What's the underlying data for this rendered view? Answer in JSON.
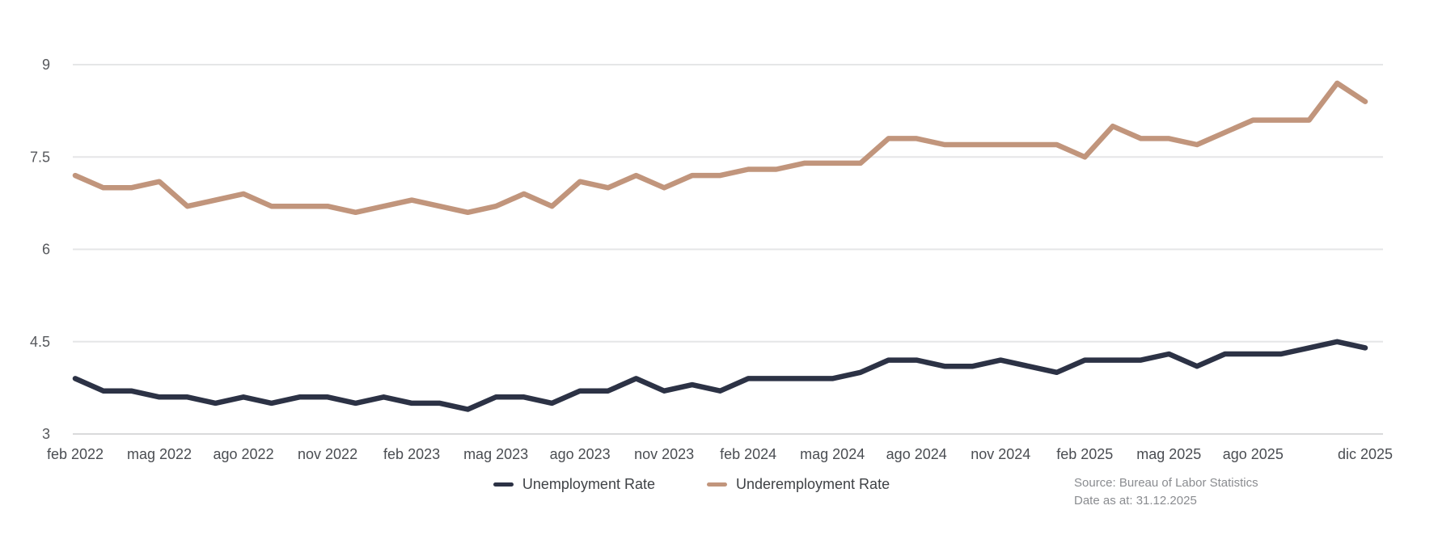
{
  "chart_data": {
    "type": "line",
    "title": "",
    "xlabel": "",
    "ylabel": "",
    "ylim": [
      3,
      9
    ],
    "yticks": [
      3,
      4.5,
      6,
      7.5,
      9
    ],
    "grid": "horizontal",
    "legend_position": "bottom-center",
    "categories": [
      "feb 2022",
      "mar 2022",
      "apr 2022",
      "mag 2022",
      "giu 2022",
      "lug 2022",
      "ago 2022",
      "set 2022",
      "ott 2022",
      "nov 2022",
      "dic 2022",
      "gen 2023",
      "feb 2023",
      "mar 2023",
      "apr 2023",
      "mag 2023",
      "giu 2023",
      "lug 2023",
      "ago 2023",
      "set 2023",
      "ott 2023",
      "nov 2023",
      "dic 2023",
      "gen 2024",
      "feb 2024",
      "mar 2024",
      "apr 2024",
      "mag 2024",
      "giu 2024",
      "lug 2024",
      "ago 2024",
      "set 2024",
      "ott 2024",
      "nov 2024",
      "dic 2024",
      "gen 2025",
      "feb 2025",
      "mar 2025",
      "apr 2025",
      "mag 2025",
      "giu 2025",
      "lug 2025",
      "ago 2025",
      "set 2025",
      "ott 2025",
      "nov 2025",
      "dic 2025"
    ],
    "xticks": [
      "feb 2022",
      "mag 2022",
      "ago 2022",
      "nov 2022",
      "feb 2023",
      "mag 2023",
      "ago 2023",
      "nov 2023",
      "feb 2024",
      "mag 2024",
      "ago 2024",
      "nov 2024",
      "feb 2025",
      "mag 2025",
      "ago 2025",
      "dic 2025"
    ],
    "series": [
      {
        "name": "Unemployment Rate",
        "color": "#2c3245",
        "values": [
          3.9,
          3.7,
          3.7,
          3.6,
          3.6,
          3.5,
          3.6,
          3.5,
          3.6,
          3.6,
          3.5,
          3.6,
          3.5,
          3.5,
          3.4,
          3.6,
          3.6,
          3.5,
          3.7,
          3.7,
          3.9,
          3.7,
          3.8,
          3.7,
          3.9,
          3.9,
          3.9,
          3.9,
          4.0,
          4.2,
          4.2,
          4.1,
          4.1,
          4.2,
          4.1,
          4.0,
          4.2,
          4.2,
          4.2,
          4.3,
          4.1,
          4.3,
          4.3,
          4.3,
          4.4,
          4.5,
          4.4
        ]
      },
      {
        "name": "Underemployment Rate",
        "color": "#c1957c",
        "values": [
          7.2,
          7.0,
          7.0,
          7.1,
          6.7,
          6.8,
          6.9,
          6.7,
          6.7,
          6.7,
          6.6,
          6.7,
          6.8,
          6.7,
          6.6,
          6.7,
          6.9,
          6.7,
          7.1,
          7.0,
          7.2,
          7.0,
          7.2,
          7.2,
          7.3,
          7.3,
          7.4,
          7.4,
          7.4,
          7.8,
          7.8,
          7.7,
          7.7,
          7.7,
          7.7,
          7.7,
          7.5,
          8.0,
          7.8,
          7.8,
          7.7,
          7.9,
          8.1,
          8.1,
          8.1,
          8.7,
          8.4
        ]
      }
    ],
    "colors": {
      "grid_line": "#e5e6e7",
      "baseline": "#d9dadb"
    }
  },
  "footer": {
    "source": "Source: Bureau of Labor Statistics",
    "date_as_at": "Date as at: 31.12.2025"
  }
}
